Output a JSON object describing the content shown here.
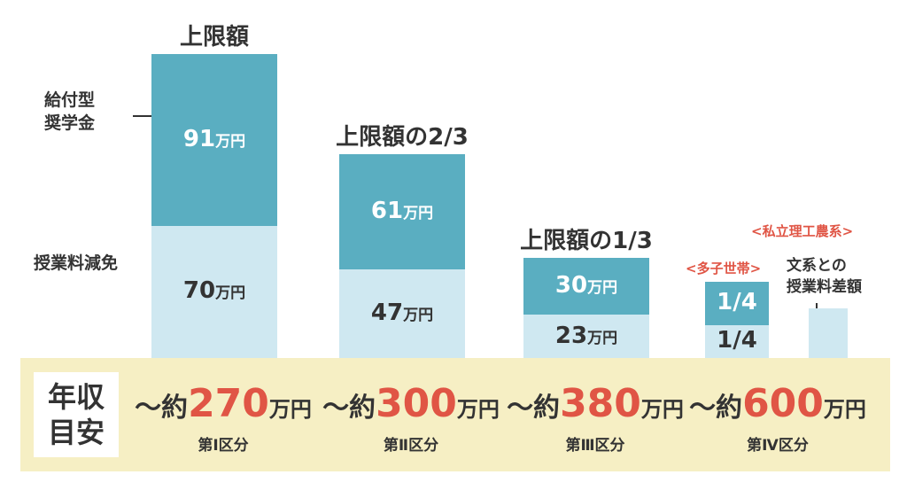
{
  "colors": {
    "scholarship": "#5aaec1",
    "tuition": "#cfe8f1",
    "band": "#f6efc4",
    "accent_red": "#e05545",
    "text": "#333333"
  },
  "legend": {
    "scholarship_line1": "給付型",
    "scholarship_line2": "奨学金",
    "tuition": "授業料減免"
  },
  "income_label": {
    "line1": "年収",
    "line2": "目安"
  },
  "extra": {
    "multi_child_tag": "<多子世帯>",
    "private_tag": "<私立理工農系>",
    "diff_note_line1": "文系との",
    "diff_note_line2": "授業料差額"
  },
  "chart_data": {
    "type": "bar",
    "stacked": true,
    "unit": "万円",
    "categories": [
      "第Ⅰ区分",
      "第Ⅱ区分",
      "第Ⅲ区分",
      "第Ⅳ区分"
    ],
    "top_labels": [
      "上限額",
      "上限額の2/3",
      "上限額の1/3",
      ""
    ],
    "series": [
      {
        "name": "授業料減免",
        "values": [
          70,
          47,
          23,
          17.5
        ],
        "labels": [
          "70",
          "47",
          "23",
          "1/4"
        ]
      },
      {
        "name": "給付型奨学金",
        "values": [
          91,
          61,
          30,
          22.75
        ],
        "labels": [
          "91",
          "61",
          "30",
          "1/4"
        ]
      }
    ],
    "extra_bar": {
      "label": "文系との授業料差額",
      "value": 17
    },
    "income": [
      {
        "prefix": "～約",
        "value": "270",
        "unit": "万円"
      },
      {
        "prefix": "～約",
        "value": "300",
        "unit": "万円"
      },
      {
        "prefix": "～約",
        "value": "380",
        "unit": "万円"
      },
      {
        "prefix": "～約",
        "value": "600",
        "unit": "万円"
      }
    ]
  }
}
